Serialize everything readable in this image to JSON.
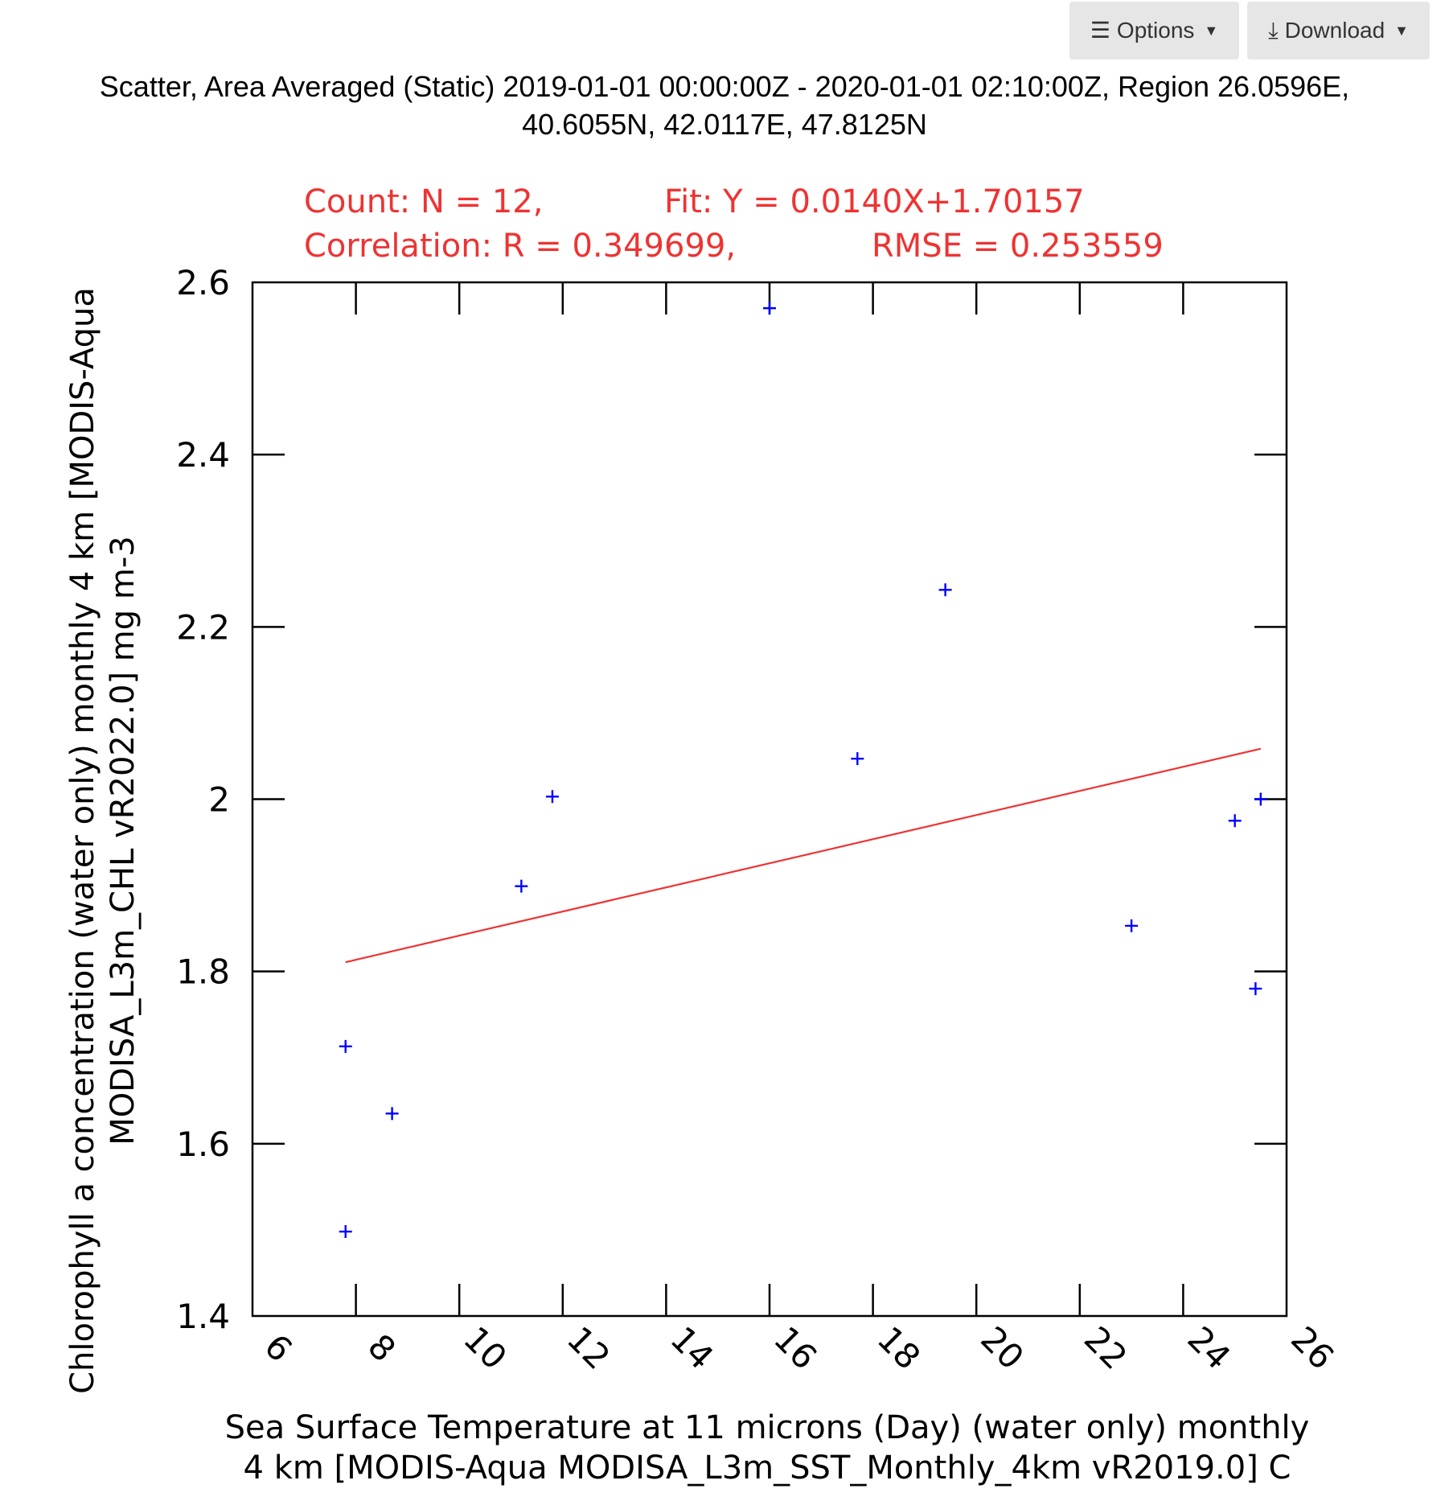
{
  "toolbar": {
    "options_label": "Options",
    "download_label": "Download",
    "options_icon": "menu-icon",
    "download_icon": "download-icon"
  },
  "page": {
    "title_line1": "Scatter, Area Averaged (Static) 2019-01-01 00:00:00Z - 2020-01-01 02:10:00Z, Region 26.0596E,",
    "title_line2": "40.6055N, 42.0117E, 47.8125N"
  },
  "chart_data": {
    "type": "scatter",
    "xlabel": "Sea Surface Temperature at 11 microns (Day) (water only) monthly 4 km [MODIS-Aqua MODISA_L3m_SST_Monthly_4km vR2019.0] C",
    "xlabel_lines": [
      "Sea Surface Temperature at 11 microns (Day) (water only) monthly",
      "4 km [MODIS-Aqua MODISA_L3m_SST_Monthly_4km vR2019.0] C"
    ],
    "ylabel": "Chlorophyll a concentration (water only) monthly 4 km [MODIS-Aqua MODISA_L3m_CHL vR2022.0] mg m-3",
    "ylabel_lines": [
      "Chlorophyll a concentration (water only) monthly 4 km [MODIS-Aqua",
      "MODISA_L3m_CHL vR2022.0] mg m-3"
    ],
    "xlim": [
      6,
      26
    ],
    "ylim": [
      1.4,
      2.6
    ],
    "xticks": [
      6,
      8,
      10,
      12,
      14,
      16,
      18,
      20,
      22,
      24,
      26
    ],
    "xtick_labels": [
      "6",
      "8",
      "10",
      "12",
      "14",
      "16",
      "18",
      "20",
      "22",
      "24",
      "26"
    ],
    "yticks": [
      1.4,
      1.6,
      1.8,
      2.0,
      2.2,
      2.4,
      2.6
    ],
    "ytick_labels": [
      "1.4",
      "1.6",
      "1.8",
      "2",
      "2.2",
      "2.4",
      "2.6"
    ],
    "grid": false,
    "points": [
      {
        "x": 7.8,
        "y": 1.498
      },
      {
        "x": 7.8,
        "y": 1.713
      },
      {
        "x": 8.7,
        "y": 1.635
      },
      {
        "x": 11.2,
        "y": 1.899
      },
      {
        "x": 11.8,
        "y": 2.003
      },
      {
        "x": 16.0,
        "y": 2.57
      },
      {
        "x": 17.7,
        "y": 2.047
      },
      {
        "x": 19.4,
        "y": 2.243
      },
      {
        "x": 23.0,
        "y": 1.853
      },
      {
        "x": 25.0,
        "y": 1.975
      },
      {
        "x": 25.4,
        "y": 1.78
      },
      {
        "x": 25.5,
        "y": 2.0
      }
    ],
    "fit_line": {
      "x": [
        7.8,
        25.5
      ],
      "y": [
        1.81077,
        2.05857
      ]
    },
    "stats": {
      "count": "Count: N = 12,",
      "fit": "Fit: Y = 0.0140X+1.70157",
      "correlation": "Correlation: R = 0.349699,",
      "rmse": "RMSE = 0.253559"
    },
    "colors": {
      "points": "#0000ff",
      "fit_line": "#ee3333",
      "stats_text": "#ee3333",
      "axes": "#000000"
    }
  }
}
